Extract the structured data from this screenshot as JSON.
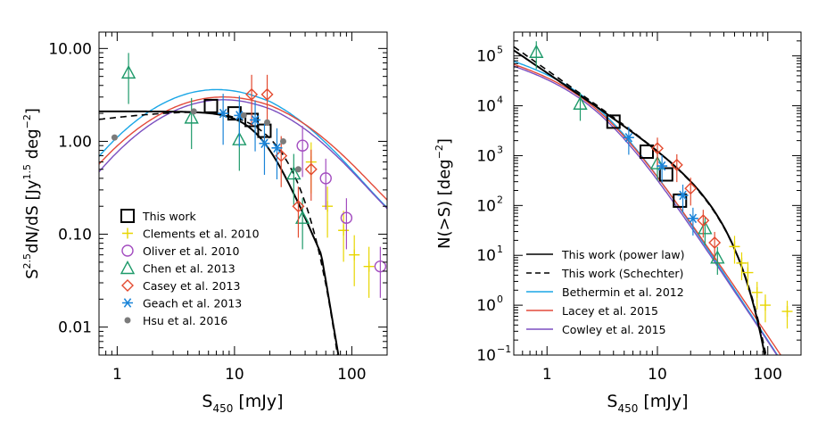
{
  "chart_data": [
    {
      "type": "scatter",
      "panel": "left",
      "xlabel_main": "S",
      "xlabel_sub": "450",
      "xlabel_unit": "[mJy]",
      "ylabel_text": "S^{2.5}dN/dS  [Jy^{1.5} deg^{-2}]",
      "xscale": "log",
      "yscale": "log",
      "xlim": [
        0.7,
        200
      ],
      "ylim": [
        0.005,
        15
      ],
      "xticks": [
        {
          "v": 1,
          "label": "1"
        },
        {
          "v": 10,
          "label": "10"
        },
        {
          "v": 100,
          "label": "100"
        }
      ],
      "yticks": [
        {
          "v": 0.01,
          "label": "0.01"
        },
        {
          "v": 0.1,
          "label": "0.10"
        },
        {
          "v": 1,
          "label": "1.00"
        },
        {
          "v": 10,
          "label": "10.00"
        }
      ],
      "legend_placement": "lower-left",
      "series": [
        {
          "name": "This work",
          "marker": "square",
          "color": "#000000",
          "points": [
            [
              6.3,
              2.4
            ],
            [
              10,
              2.0
            ],
            [
              14,
              1.7
            ],
            [
              18,
              1.3
            ]
          ]
        },
        {
          "name": "Clements et al. 2010",
          "marker": "plus",
          "color": "#e8d600",
          "points": [
            [
              45,
              0.6
            ],
            [
              62,
              0.2
            ],
            [
              85,
              0.11
            ],
            [
              105,
              0.06
            ],
            [
              140,
              0.045
            ]
          ]
        },
        {
          "name": "Oliver et al. 2010",
          "marker": "circle",
          "color": "#a34dc0",
          "points": [
            [
              38,
              0.9
            ],
            [
              60,
              0.4
            ],
            [
              90,
              0.15
            ],
            [
              175,
              0.045
            ]
          ]
        },
        {
          "name": "Chen et al. 2013",
          "marker": "triangle",
          "color": "#1e9a6a",
          "points": [
            [
              1.25,
              5.5
            ],
            [
              4.3,
              1.8
            ],
            [
              11,
              1.05
            ],
            [
              32,
              0.45
            ],
            [
              38,
              0.15
            ]
          ]
        },
        {
          "name": "Casey et al. 2013",
          "marker": "diamond",
          "color": "#e34a2f",
          "points": [
            [
              14,
              3.2
            ],
            [
              19,
              3.2
            ],
            [
              25,
              0.7
            ],
            [
              35,
              0.2
            ],
            [
              45,
              0.5
            ]
          ]
        },
        {
          "name": "Geach et al. 2013",
          "marker": "asterisk",
          "color": "#1a84d8",
          "points": [
            [
              8,
              2.0
            ],
            [
              11,
              1.9
            ],
            [
              15,
              1.7
            ],
            [
              18,
              0.95
            ],
            [
              23,
              0.85
            ]
          ]
        },
        {
          "name": "Hsu et al. 2016",
          "marker": "dot",
          "color": "#7b7b7b",
          "points": [
            [
              0.95,
              1.1
            ],
            [
              4.5,
              2.1
            ],
            [
              12,
              1.9
            ],
            [
              19,
              1.6
            ],
            [
              26,
              1.0
            ],
            [
              35,
              0.5
            ]
          ]
        }
      ]
    },
    {
      "type": "scatter",
      "panel": "right",
      "xlabel_main": "S",
      "xlabel_sub": "450",
      "xlabel_unit": "[mJy]",
      "ylabel_text": "N(>S)  [deg^{-2}]",
      "xscale": "log",
      "yscale": "log",
      "xlim": [
        0.5,
        200
      ],
      "ylim": [
        0.1,
        300000
      ],
      "xticks": [
        {
          "v": 1,
          "label": "1"
        },
        {
          "v": 10,
          "label": "10"
        },
        {
          "v": 100,
          "label": "100"
        }
      ],
      "yticks": [
        {
          "v": 0.1,
          "base": "10",
          "exp": "−1"
        },
        {
          "v": 1,
          "base": "10",
          "exp": "0"
        },
        {
          "v": 10,
          "base": "10",
          "exp": "1"
        },
        {
          "v": 100,
          "base": "10",
          "exp": "2"
        },
        {
          "v": 1000,
          "base": "10",
          "exp": "3"
        },
        {
          "v": 10000,
          "base": "10",
          "exp": "4"
        },
        {
          "v": 100000,
          "base": "10",
          "exp": "5"
        }
      ],
      "legend_placement": "lower-left",
      "legend": [
        {
          "name": "This work (power law)",
          "style": "solid",
          "color": "#000000"
        },
        {
          "name": "This work (Schechter)",
          "style": "dashed",
          "color": "#000000"
        },
        {
          "name": "Bethermin et al. 2012",
          "style": "solid",
          "color": "#1aa6e6"
        },
        {
          "name": "Lacey et al. 2015",
          "style": "solid",
          "color": "#e34a3a"
        },
        {
          "name": "Cowley et al. 2015",
          "style": "solid",
          "color": "#7b4fc0"
        }
      ],
      "series": [
        {
          "name": "This work",
          "marker": "square",
          "color": "#000000",
          "points": [
            [
              4,
              4800
            ],
            [
              8,
              1200
            ],
            [
              12,
              420
            ],
            [
              16,
              125
            ]
          ]
        },
        {
          "name": "Chen et al. 2013",
          "marker": "triangle",
          "color": "#1e9a6a",
          "points": [
            [
              0.8,
              120000
            ],
            [
              2,
              11000
            ],
            [
              10,
              700
            ],
            [
              27,
              35
            ],
            [
              35,
              9
            ]
          ]
        },
        {
          "name": "Casey et al. 2013",
          "marker": "diamond",
          "color": "#e34a2f",
          "points": [
            [
              10,
              1400
            ],
            [
              15,
              650
            ],
            [
              20,
              220
            ],
            [
              26,
              50
            ],
            [
              33,
              18
            ]
          ]
        },
        {
          "name": "Geach et al. 2013",
          "marker": "asterisk",
          "color": "#1a84d8",
          "points": [
            [
              5.5,
              2300
            ],
            [
              11,
              620
            ],
            [
              17,
              160
            ],
            [
              21,
              55
            ]
          ]
        },
        {
          "name": "Clements et al. 2010",
          "marker": "plus",
          "color": "#e8d600",
          "points": [
            [
              50,
              15
            ],
            [
              58,
              7
            ],
            [
              66,
              4.5
            ],
            [
              80,
              1.8
            ],
            [
              95,
              1.0
            ],
            [
              150,
              0.75
            ]
          ]
        }
      ]
    }
  ]
}
